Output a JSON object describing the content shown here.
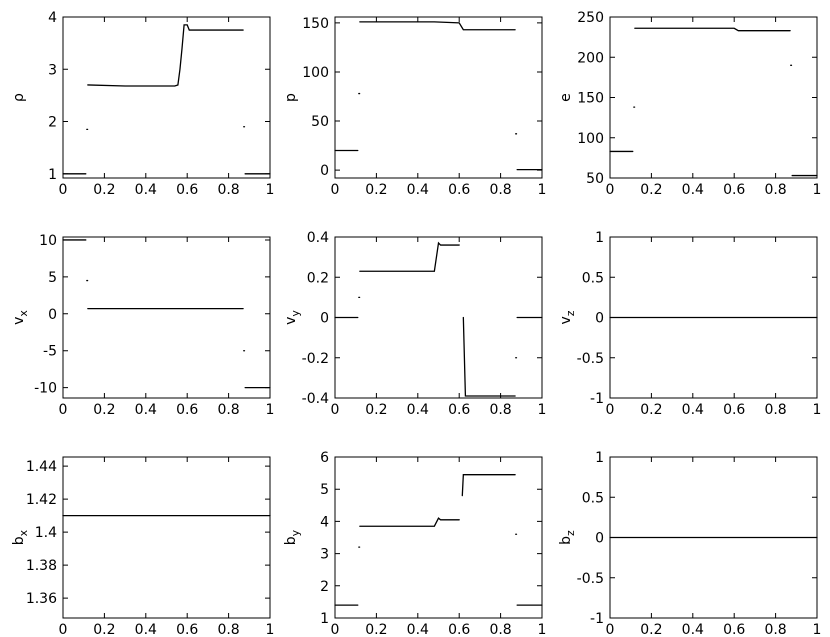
{
  "chart_data": [
    {
      "type": "line",
      "ylabel": "ρ",
      "xlim": [
        0,
        1
      ],
      "xticks": [
        0,
        0.2,
        0.4,
        0.6,
        0.8,
        1
      ],
      "ylim": [
        0.92,
        4
      ],
      "yticks": [
        1,
        2,
        3,
        4
      ],
      "color": "#000000",
      "x": [
        0,
        0.11,
        0.113,
        0.115,
        0.117,
        0.12,
        0.3,
        0.54,
        0.555,
        0.565,
        0.575,
        0.585,
        0.6,
        0.61,
        0.87,
        0.872,
        0.873,
        0.875,
        0.88,
        1
      ],
      "values": [
        1,
        1,
        null,
        1.85,
        null,
        2.7,
        2.68,
        2.68,
        2.7,
        3.0,
        3.4,
        3.85,
        3.85,
        3.75,
        3.75,
        null,
        1.9,
        null,
        1,
        1
      ]
    },
    {
      "type": "line",
      "ylabel": "p",
      "xlim": [
        0,
        1
      ],
      "xticks": [
        0,
        0.2,
        0.4,
        0.6,
        0.8,
        1
      ],
      "ylim": [
        -8,
        156
      ],
      "yticks": [
        0,
        50,
        100,
        150
      ],
      "color": "#000000",
      "x": [
        0,
        0.11,
        0.113,
        0.115,
        0.117,
        0.12,
        0.48,
        0.6,
        0.62,
        0.87,
        0.871,
        0.873,
        0.875,
        0.88,
        1
      ],
      "values": [
        20,
        20,
        null,
        78,
        null,
        151,
        151,
        150,
        143,
        143,
        null,
        37,
        null,
        0.5,
        0.5
      ]
    },
    {
      "type": "line",
      "ylabel": "e",
      "xlim": [
        0,
        1
      ],
      "xticks": [
        0,
        0.2,
        0.4,
        0.6,
        0.8,
        1
      ],
      "ylim": [
        50,
        250
      ],
      "yticks": [
        50,
        100,
        150,
        200,
        250
      ],
      "color": "#000000",
      "x": [
        0,
        0.11,
        0.113,
        0.115,
        0.117,
        0.12,
        0.6,
        0.62,
        0.87,
        0.871,
        0.873,
        0.875,
        0.88,
        1
      ],
      "values": [
        83,
        83,
        null,
        138,
        null,
        236,
        236,
        233,
        233,
        null,
        190,
        null,
        53,
        53
      ]
    },
    {
      "type": "line",
      "ylabel": "v",
      "ylabel_sub": "x",
      "xlim": [
        0,
        1
      ],
      "xticks": [
        0,
        0.2,
        0.4,
        0.6,
        0.8,
        1
      ],
      "ylim": [
        -11.4,
        10.4
      ],
      "yticks": [
        -10,
        -5,
        0,
        5,
        10
      ],
      "color": "#000000",
      "x": [
        0,
        0.11,
        0.113,
        0.115,
        0.117,
        0.12,
        0.87,
        0.871,
        0.873,
        0.875,
        0.88,
        1
      ],
      "values": [
        10,
        10,
        null,
        4.5,
        null,
        0.7,
        0.7,
        null,
        -5,
        null,
        -10,
        -10
      ]
    },
    {
      "type": "line",
      "ylabel": "v",
      "ylabel_sub": "y",
      "xlim": [
        0,
        1
      ],
      "xticks": [
        0,
        0.2,
        0.4,
        0.6,
        0.8,
        1
      ],
      "ylim": [
        -0.4,
        0.4
      ],
      "yticks": [
        -0.4,
        -0.2,
        0,
        0.2,
        0.4
      ],
      "color": "#000000",
      "x": [
        0,
        0.11,
        0.113,
        0.115,
        0.117,
        0.12,
        0.48,
        0.5,
        0.51,
        0.6,
        0.61,
        0.62,
        0.63,
        0.87,
        0.871,
        0.873,
        0.875,
        0.88,
        1
      ],
      "values": [
        0,
        0,
        null,
        0.1,
        null,
        0.23,
        0.23,
        0.37,
        0.36,
        0.36,
        null,
        0,
        -0.39,
        -0.39,
        null,
        -0.2,
        null,
        0,
        0
      ]
    },
    {
      "type": "line",
      "ylabel": "v",
      "ylabel_sub": "z",
      "xlim": [
        0,
        1
      ],
      "xticks": [
        0,
        0.2,
        0.4,
        0.6,
        0.8,
        1
      ],
      "ylim": [
        -1,
        1
      ],
      "yticks": [
        -1,
        -0.5,
        0,
        0.5,
        1
      ],
      "color": "#000000",
      "x": [
        0,
        1
      ],
      "values": [
        0,
        0
      ]
    },
    {
      "type": "line",
      "ylabel": "b",
      "ylabel_sub": "x",
      "xlim": [
        0,
        1
      ],
      "xticks": [
        0,
        0.2,
        0.4,
        0.6,
        0.8,
        1
      ],
      "ylim": [
        1.348,
        1.4455
      ],
      "yticks": [
        1.36,
        1.38,
        1.4,
        1.42,
        1.44
      ],
      "color": "#000000",
      "x": [
        0,
        1
      ],
      "values": [
        1.41,
        1.41
      ]
    },
    {
      "type": "line",
      "ylabel": "b",
      "ylabel_sub": "y",
      "xlim": [
        0,
        1
      ],
      "xticks": [
        0,
        0.2,
        0.4,
        0.6,
        0.8,
        1
      ],
      "ylim": [
        1,
        6
      ],
      "yticks": [
        1,
        2,
        3,
        4,
        5,
        6
      ],
      "color": "#000000",
      "x": [
        0,
        0.11,
        0.113,
        0.115,
        0.117,
        0.12,
        0.48,
        0.5,
        0.51,
        0.6,
        0.61,
        0.615,
        0.62,
        0.87,
        0.871,
        0.873,
        0.875,
        0.88,
        1
      ],
      "values": [
        1.4,
        1.4,
        null,
        3.2,
        null,
        3.85,
        3.85,
        4.1,
        4.05,
        4.05,
        null,
        4.8,
        5.45,
        5.45,
        null,
        3.6,
        null,
        1.4,
        1.4
      ]
    },
    {
      "type": "line",
      "ylabel": "b",
      "ylabel_sub": "z",
      "xlim": [
        0,
        1
      ],
      "xticks": [
        0,
        0.2,
        0.4,
        0.6,
        0.8,
        1
      ],
      "ylim": [
        -1,
        1
      ],
      "yticks": [
        -1,
        -0.5,
        0,
        0.5,
        1
      ],
      "color": "#000000",
      "x": [
        0,
        1
      ],
      "values": [
        0,
        0
      ]
    }
  ]
}
